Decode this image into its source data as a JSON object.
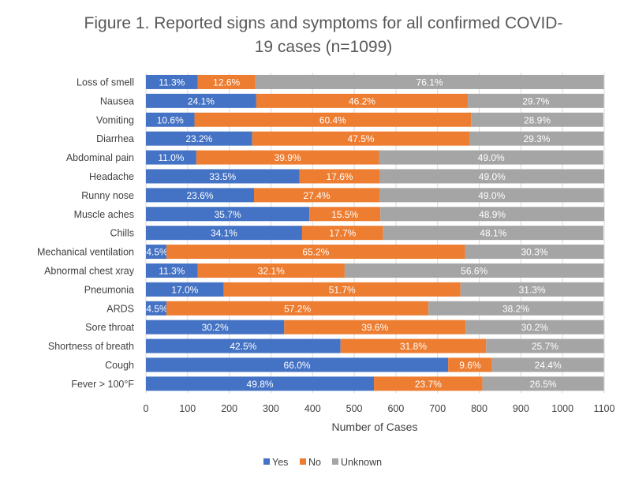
{
  "chart_data": {
    "type": "bar",
    "orientation": "horizontal",
    "stacked": true,
    "title_lines": [
      "Figure 1. Reported signs and symptoms for all confirmed COVID-",
      "19 cases (n=1099)"
    ],
    "n": 1099,
    "xlabel": "Number of Cases",
    "ylabel": "",
    "xlim": [
      0,
      1100
    ],
    "xticks": [
      0,
      100,
      200,
      300,
      400,
      500,
      600,
      700,
      800,
      900,
      1000,
      1100
    ],
    "grid": true,
    "legend_position": "bottom",
    "categories": [
      "Loss of smell",
      "Nausea",
      "Vomiting",
      "Diarrhea",
      "Abdominal pain",
      "Headache",
      "Runny nose",
      "Muscle aches",
      "Chills",
      "Mechanical ventilation",
      "Abnormal chest xray",
      "Pneumonia",
      "ARDS",
      "Sore throat",
      "Shortness of breath",
      "Cough",
      "Fever > 100°F"
    ],
    "series": [
      {
        "name": "Yes",
        "color": "#4472C4",
        "percent": [
          11.3,
          24.1,
          10.6,
          23.2,
          11.0,
          33.5,
          23.6,
          35.7,
          34.1,
          4.5,
          11.3,
          17.0,
          4.5,
          30.2,
          42.5,
          66.0,
          49.8
        ]
      },
      {
        "name": "No",
        "color": "#ED7D31",
        "percent": [
          12.6,
          46.2,
          60.4,
          47.5,
          39.9,
          17.6,
          27.4,
          15.5,
          17.7,
          65.2,
          32.1,
          51.7,
          57.2,
          39.6,
          31.8,
          9.6,
          23.7
        ]
      },
      {
        "name": "Unknown",
        "color": "#A5A5A5",
        "percent": [
          76.1,
          29.7,
          28.9,
          29.3,
          49.0,
          49.0,
          49.0,
          48.9,
          48.1,
          30.3,
          56.6,
          31.3,
          38.2,
          30.2,
          25.7,
          24.4,
          26.5
        ]
      }
    ]
  }
}
